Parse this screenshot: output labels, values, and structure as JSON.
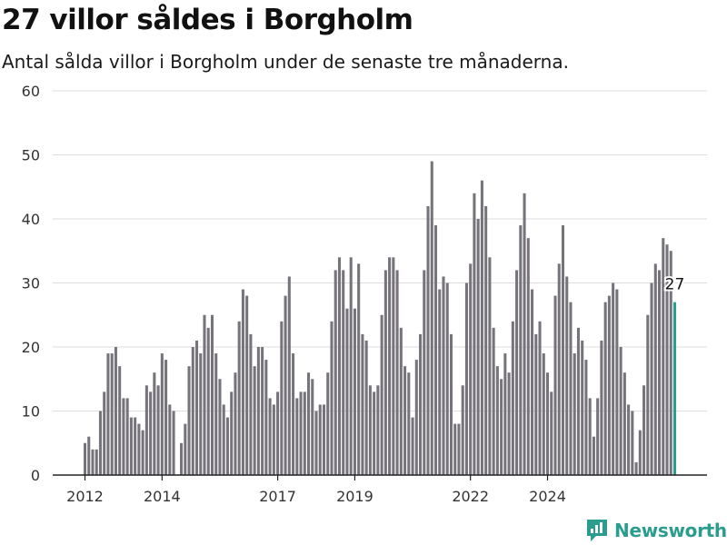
{
  "title": "27 villor såldes i Borgholm",
  "subtitle": "Antal sålda villor i Borgholm under de senaste tre månaderna.",
  "brand": "Newsworthy",
  "colors": {
    "bar": "#76737a",
    "highlight": "#2a9d8f",
    "grid": "#dddddd",
    "axis": "#222222"
  },
  "chart_data": {
    "type": "bar",
    "ylim": [
      0,
      60
    ],
    "yticks": [
      0,
      10,
      20,
      30,
      40,
      50,
      60
    ],
    "xticks": [
      "2012",
      "2014",
      "2017",
      "2019",
      "2022",
      "2024"
    ],
    "xtick_bar_index": [
      0,
      20,
      50,
      70,
      100,
      120
    ],
    "grid": true,
    "highlight_label": "27",
    "values": [
      5,
      6,
      4,
      4,
      10,
      13,
      19,
      19,
      20,
      17,
      12,
      12,
      9,
      9,
      8,
      7,
      14,
      13,
      16,
      14,
      19,
      18,
      11,
      10,
      0,
      5,
      8,
      17,
      20,
      21,
      19,
      25,
      23,
      25,
      19,
      15,
      11,
      9,
      13,
      16,
      24,
      29,
      28,
      22,
      17,
      20,
      20,
      18,
      12,
      11,
      13,
      24,
      28,
      31,
      19,
      12,
      13,
      13,
      16,
      15,
      10,
      11,
      11,
      16,
      24,
      32,
      34,
      32,
      26,
      34,
      26,
      33,
      22,
      21,
      14,
      13,
      14,
      25,
      32,
      34,
      34,
      32,
      23,
      17,
      16,
      9,
      18,
      22,
      32,
      42,
      49,
      39,
      29,
      31,
      30,
      22,
      8,
      8,
      14,
      30,
      33,
      44,
      40,
      46,
      42,
      34,
      23,
      17,
      15,
      19,
      16,
      24,
      32,
      39,
      44,
      37,
      29,
      22,
      24,
      19,
      16,
      13,
      28,
      33,
      39,
      31,
      27,
      19,
      23,
      21,
      18,
      12,
      6,
      12,
      21,
      27,
      28,
      30,
      29,
      20,
      16,
      11,
      10,
      2,
      7,
      14,
      25,
      30,
      33,
      32,
      37,
      36,
      35,
      27
    ]
  }
}
